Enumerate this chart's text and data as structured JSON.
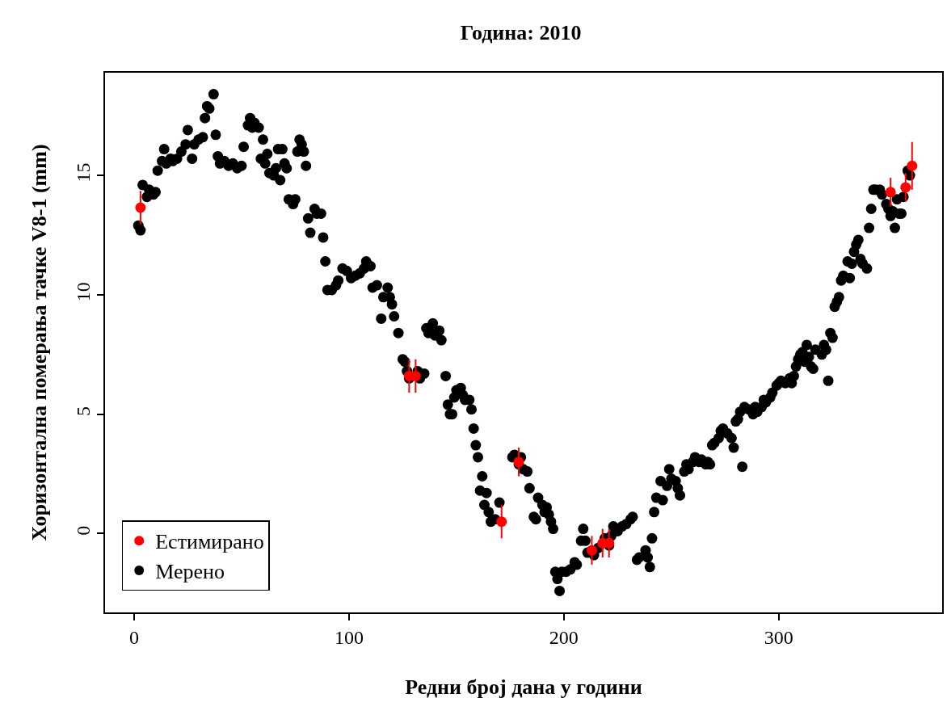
{
  "chart_data": {
    "type": "scatter",
    "title": "Година: 2010",
    "xlabel": "Редни број дана у години",
    "ylabel": "Хоризонтална померања тачке V8-1 (mm)",
    "xlim": [
      -13.5,
      376
    ],
    "xticks": [
      0,
      100,
      200,
      300
    ],
    "ylim": [
      -3.3,
      19.3
    ],
    "yticks": [
      0,
      5,
      10,
      15
    ],
    "legend": "bottom left",
    "marker": "circle",
    "series": [
      {
        "name": "Естимирано",
        "color": "#ff0000",
        "x": [
          3,
          128,
          131,
          171,
          179,
          213,
          218,
          221,
          352,
          359,
          362
        ],
        "values": [
          13.65,
          6.6,
          6.6,
          0.5,
          3.0,
          -0.7,
          -0.4,
          -0.4,
          14.3,
          14.5,
          15.4
        ],
        "errors": [
          0.7,
          0.7,
          0.7,
          0.7,
          0.6,
          0.6,
          0.6,
          0.6,
          0.6,
          0.6,
          1.0
        ]
      },
      {
        "name": "Мерено",
        "color": "#000000",
        "x": [
          2,
          3,
          4,
          6,
          7,
          9,
          10,
          11,
          13,
          14,
          15,
          17,
          18,
          20,
          22,
          24,
          25,
          27,
          28,
          30,
          32,
          33,
          34,
          35,
          37,
          38,
          39,
          40,
          42,
          44,
          46,
          48,
          50,
          51,
          53,
          54,
          55,
          56,
          58,
          59,
          60,
          61,
          62,
          63,
          65,
          66,
          67,
          68,
          69,
          70,
          71,
          72,
          74,
          75,
          76,
          77,
          78,
          79,
          80,
          81,
          82,
          84,
          85,
          87,
          88,
          89,
          90,
          92,
          94,
          95,
          97,
          99,
          101,
          103,
          105,
          107,
          108,
          110,
          111,
          113,
          115,
          116,
          118,
          119,
          120,
          121,
          123,
          125,
          126,
          127,
          128,
          132,
          133,
          135,
          136,
          137,
          138,
          139,
          140,
          142,
          143,
          145,
          146,
          147,
          148,
          149,
          150,
          152,
          153,
          154,
          156,
          157,
          158,
          159,
          160,
          161,
          162,
          163,
          164,
          165,
          166,
          168,
          170,
          176,
          177,
          179,
          180,
          181,
          183,
          184,
          186,
          187,
          188,
          190,
          191,
          192,
          193,
          194,
          195,
          196,
          197,
          198,
          199,
          201,
          203,
          205,
          206,
          208,
          209,
          210,
          211,
          214,
          216,
          219,
          221,
          222,
          223,
          225,
          227,
          229,
          231,
          232,
          234,
          235,
          238,
          239,
          240,
          241,
          242,
          243,
          245,
          246,
          248,
          249,
          250,
          252,
          253,
          254,
          256,
          257,
          258,
          260,
          261,
          263,
          264,
          266,
          267,
          268,
          269,
          270,
          272,
          273,
          274,
          276,
          278,
          279,
          280,
          281,
          282,
          283,
          284,
          286,
          288,
          289,
          290,
          292,
          293,
          294,
          296,
          297,
          299,
          300,
          301,
          303,
          305,
          306,
          307,
          308,
          309,
          310,
          311,
          312,
          313,
          314,
          315,
          316,
          317,
          320,
          321,
          322,
          323,
          324,
          325,
          326,
          327,
          328,
          329,
          330,
          332,
          333,
          334,
          335,
          336,
          337,
          338,
          339,
          341,
          342,
          343,
          344,
          345,
          347,
          348,
          350,
          351,
          352,
          353,
          354,
          355,
          356,
          357,
          358,
          360,
          361
        ],
        "values": [
          12.9,
          12.7,
          14.6,
          14.1,
          14.4,
          14.2,
          14.3,
          15.2,
          15.6,
          16.1,
          15.5,
          15.7,
          15.6,
          15.7,
          16.0,
          16.3,
          16.9,
          15.7,
          16.3,
          16.5,
          16.6,
          17.4,
          17.9,
          17.8,
          18.4,
          16.7,
          15.8,
          15.5,
          15.6,
          15.4,
          15.5,
          15.3,
          15.4,
          16.2,
          17.1,
          17.4,
          17.0,
          17.2,
          17.0,
          15.7,
          16.5,
          15.5,
          15.9,
          15.1,
          15.0,
          15.3,
          16.1,
          14.8,
          16.1,
          15.5,
          15.3,
          14.0,
          13.8,
          14.0,
          16.0,
          16.5,
          16.3,
          16.0,
          15.4,
          13.2,
          12.6,
          13.6,
          13.4,
          13.4,
          12.4,
          11.4,
          10.2,
          10.2,
          10.4,
          10.6,
          11.1,
          11.0,
          10.7,
          10.8,
          10.9,
          11.1,
          11.4,
          11.2,
          10.3,
          10.4,
          9.0,
          9.9,
          10.3,
          9.9,
          9.6,
          9.1,
          8.4,
          7.3,
          7.2,
          6.8,
          6.5,
          6.8,
          6.5,
          6.7,
          8.6,
          8.4,
          8.6,
          8.8,
          8.3,
          8.5,
          8.1,
          6.6,
          5.4,
          5.0,
          5.0,
          5.7,
          6.0,
          6.1,
          5.8,
          5.6,
          5.6,
          5.2,
          4.4,
          3.7,
          3.2,
          1.8,
          2.4,
          1.2,
          1.7,
          0.9,
          0.5,
          0.6,
          1.3,
          3.2,
          3.3,
          2.9,
          3.2,
          2.7,
          2.6,
          1.9,
          0.7,
          0.6,
          1.5,
          1.2,
          0.9,
          1.1,
          0.8,
          0.5,
          0.2,
          -1.6,
          -1.9,
          -2.4,
          -1.6,
          -1.6,
          -1.5,
          -1.2,
          -1.3,
          -0.3,
          0.2,
          -0.3,
          -0.8,
          -0.9,
          -0.6,
          -0.2,
          -0.5,
          -0.1,
          0.3,
          0.1,
          0.3,
          0.4,
          0.6,
          0.7,
          -1.1,
          -1.0,
          -0.7,
          -1.0,
          -1.4,
          -0.2,
          0.9,
          1.5,
          2.2,
          1.4,
          2.0,
          2.7,
          2.3,
          2.2,
          1.9,
          1.6,
          2.6,
          2.9,
          2.7,
          3.0,
          3.2,
          3.0,
          3.1,
          2.9,
          3.0,
          2.9,
          3.7,
          3.8,
          4.0,
          4.3,
          4.4,
          4.2,
          4.0,
          3.6,
          4.7,
          4.8,
          5.1,
          2.8,
          5.3,
          5.2,
          5.0,
          5.3,
          5.1,
          5.3,
          5.6,
          5.5,
          5.7,
          5.9,
          6.2,
          6.3,
          6.4,
          6.3,
          6.5,
          6.3,
          6.6,
          7.0,
          7.3,
          7.5,
          7.6,
          7.2,
          7.9,
          7.4,
          7.0,
          6.9,
          7.7,
          7.5,
          7.9,
          7.7,
          6.4,
          8.4,
          8.2,
          9.5,
          9.7,
          9.9,
          10.6,
          10.8,
          11.4,
          10.7,
          11.3,
          11.8,
          12.1,
          12.3,
          11.5,
          11.3,
          11.1,
          12.8,
          13.6,
          14.4,
          14.4,
          14.4,
          14.2,
          13.8,
          13.6,
          13.3,
          13.5,
          12.8,
          14.0,
          13.4,
          13.4,
          14.1,
          15.2,
          15.0
        ]
      }
    ]
  }
}
